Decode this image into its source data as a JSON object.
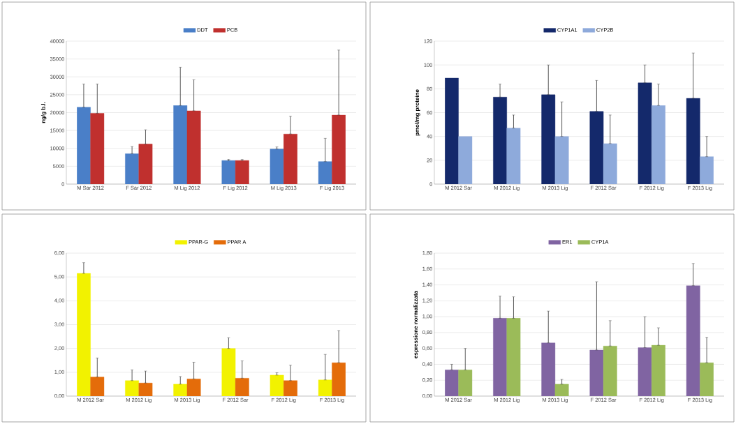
{
  "chart_data": [
    {
      "type": "bar",
      "ylabel": "ng/g b.l.",
      "categories": [
        "M Sar 2012",
        "F Sar 2012",
        "M Lig 2012",
        "F Lig 2012",
        "M Lig 2013",
        "F Lig 2013"
      ],
      "series": [
        {
          "name": "DDT",
          "color": "#4a7fc8",
          "values": [
            21500,
            8500,
            22000,
            6600,
            9800,
            6300
          ],
          "errors": [
            [
              21500,
              28000
            ],
            [
              8500,
              10500
            ],
            [
              22000,
              32700
            ],
            [
              6600,
              6900
            ],
            [
              9800,
              10400
            ],
            [
              6300,
              12800
            ]
          ]
        },
        {
          "name": "PCB",
          "color": "#c0302e",
          "values": [
            19800,
            11200,
            20500,
            6600,
            14000,
            19300
          ],
          "errors": [
            [
              19800,
              28000
            ],
            [
              11200,
              15200
            ],
            [
              20500,
              29200
            ],
            [
              6600,
              6900
            ],
            [
              14000,
              19000
            ],
            [
              19300,
              37500
            ]
          ]
        }
      ],
      "ylim": [
        0,
        40000
      ],
      "yticks": [
        0,
        5000,
        10000,
        15000,
        20000,
        25000,
        30000,
        35000,
        40000
      ],
      "grid": "y",
      "legend": "top"
    },
    {
      "type": "bar",
      "ylabel": "pmol/mg proteine",
      "categories": [
        "M 2012 Sar",
        "M 2012 Lig",
        "M 2013 Lig",
        "F 2012 Sar",
        "F 2012 Lig",
        "F 2013 Lig"
      ],
      "series": [
        {
          "name": "CYP1A1",
          "color": "#14296b",
          "values": [
            89,
            73,
            75,
            61,
            85,
            72
          ],
          "errors": [
            null,
            [
              73,
              84
            ],
            [
              75,
              100
            ],
            [
              61,
              87
            ],
            [
              85,
              100
            ],
            [
              72,
              110
            ]
          ]
        },
        {
          "name": "CYP2B",
          "color": "#8eaadb",
          "values": [
            40,
            47,
            40,
            34,
            66,
            23
          ],
          "errors": [
            null,
            [
              47,
              58
            ],
            [
              40,
              69
            ],
            [
              34,
              58
            ],
            [
              66,
              84
            ],
            [
              23,
              40
            ]
          ]
        }
      ],
      "ylim": [
        0,
        120
      ],
      "yticks": [
        0,
        20,
        40,
        60,
        80,
        100,
        120
      ],
      "grid": "y",
      "legend": "top"
    },
    {
      "type": "bar",
      "categories": [
        "M 2012 Sar",
        "M 2012 Lig",
        "M 2013 Lig",
        "F 2012 Sar",
        "F 2012 Lig",
        "F 2013 Lig"
      ],
      "series": [
        {
          "name": "PPAR-G",
          "color": "#f2f200",
          "values": [
            5.15,
            0.65,
            0.5,
            2.0,
            0.88,
            0.68
          ],
          "errors": [
            [
              5.15,
              5.6
            ],
            [
              0.65,
              1.1
            ],
            [
              0.5,
              0.82
            ],
            [
              2.0,
              2.45
            ],
            [
              0.88,
              0.98
            ],
            [
              0.68,
              1.75
            ]
          ]
        },
        {
          "name": "PPAR A",
          "color": "#e46c0a",
          "values": [
            0.8,
            0.55,
            0.72,
            0.75,
            0.65,
            1.4
          ],
          "errors": [
            [
              0.8,
              1.6
            ],
            [
              0.55,
              1.05
            ],
            [
              0.72,
              1.42
            ],
            [
              0.75,
              1.48
            ],
            [
              0.65,
              1.3
            ],
            [
              1.4,
              2.75
            ]
          ]
        }
      ],
      "ylim": [
        0,
        6
      ],
      "yticks": [
        {
          "value": 0,
          "label": "0,00"
        },
        {
          "value": 1,
          "label": "1,00"
        },
        {
          "value": 2,
          "label": "2,00"
        },
        {
          "value": 3,
          "label": "3,00"
        },
        {
          "value": 4,
          "label": "4,00"
        },
        {
          "value": 5,
          "label": "5,00"
        },
        {
          "value": 6,
          "label": "6,00"
        }
      ],
      "grid": "y",
      "legend": "top"
    },
    {
      "type": "bar",
      "ylabel": "espressione normalizzata",
      "categories": [
        "M 2012 Sar",
        "M 2012 Lig",
        "M 2013 Lig",
        "F 2012 Sar",
        "F 2012 Lig",
        "F 2013 Lig"
      ],
      "series": [
        {
          "name": "ER1",
          "color": "#8064a2",
          "values": [
            0.33,
            0.98,
            0.67,
            0.58,
            0.61,
            1.39
          ],
          "errors": [
            [
              0.33,
              0.4
            ],
            [
              0.98,
              1.26
            ],
            [
              0.67,
              1.07
            ],
            [
              0.58,
              1.44
            ],
            [
              0.61,
              1.0
            ],
            [
              1.39,
              1.67
            ]
          ]
        },
        {
          "name": "CYP1A",
          "color": "#9bbb59",
          "values": [
            0.33,
            0.98,
            0.15,
            0.63,
            0.64,
            0.42
          ],
          "errors": [
            [
              0.33,
              0.6
            ],
            [
              0.98,
              1.25
            ],
            [
              0.15,
              0.21
            ],
            [
              0.63,
              0.95
            ],
            [
              0.64,
              0.86
            ],
            [
              0.42,
              0.74
            ]
          ]
        }
      ],
      "ylim": [
        0,
        1.8
      ],
      "yticks": [
        {
          "value": 0,
          "label": "0,00"
        },
        {
          "value": 0.2,
          "label": "0,20"
        },
        {
          "value": 0.4,
          "label": "0,40"
        },
        {
          "value": 0.6,
          "label": "0,60"
        },
        {
          "value": 0.8,
          "label": "0,80"
        },
        {
          "value": 1,
          "label": "1,00"
        },
        {
          "value": 1.2,
          "label": "1,20"
        },
        {
          "value": 1.4,
          "label": "1,40"
        },
        {
          "value": 1.6,
          "label": "1,60"
        },
        {
          "value": 1.8,
          "label": "1,80"
        }
      ],
      "grid": "y",
      "legend": "top"
    }
  ]
}
